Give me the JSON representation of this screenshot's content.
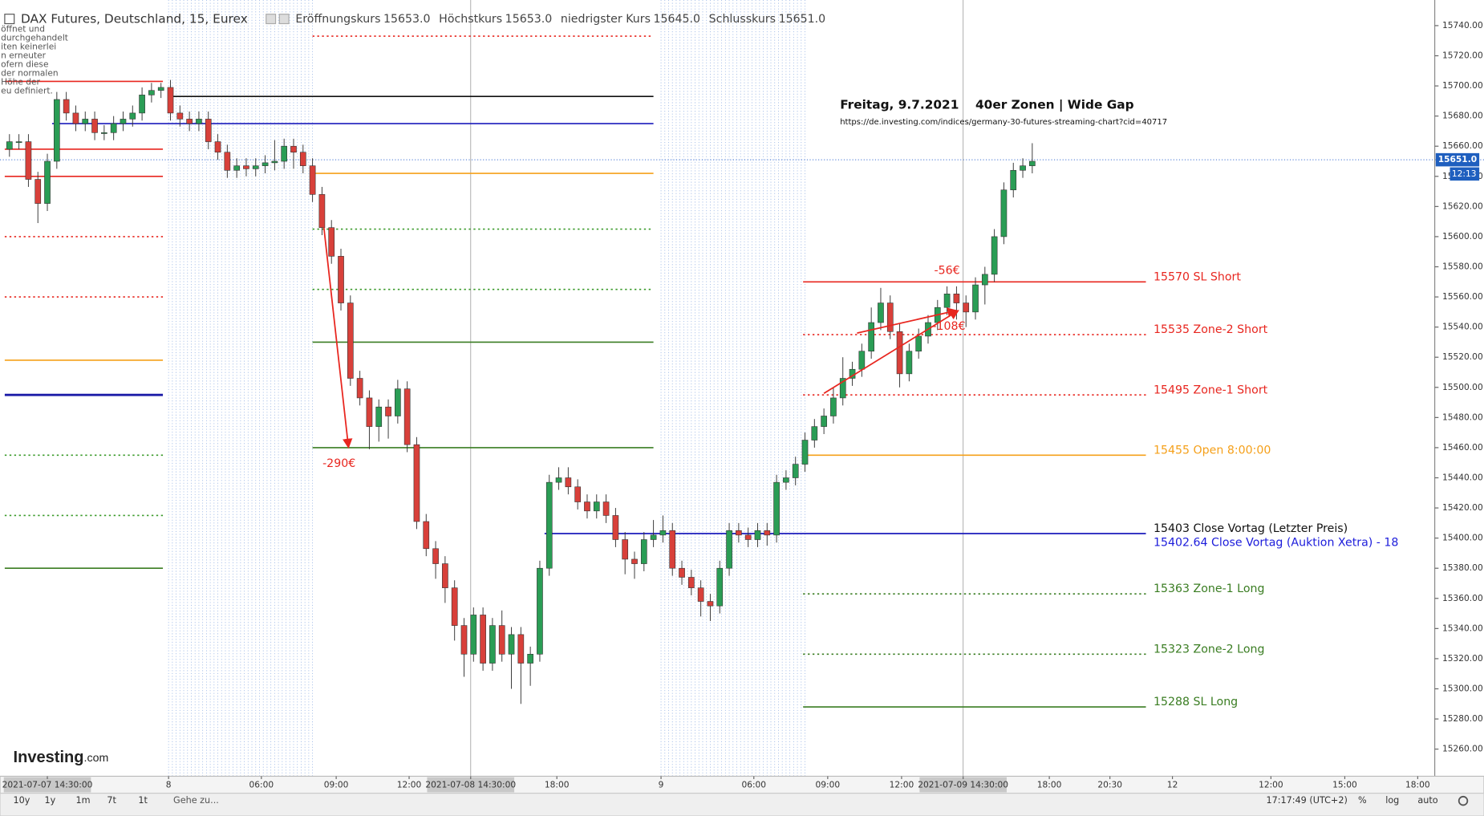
{
  "header": {
    "title": "DAX Futures, Deutschland, 15, Eurex",
    "ohlc": [
      {
        "label": "Eröffnungskurs",
        "value": "15653.0"
      },
      {
        "label": "Höchstkurs",
        "value": "15653.0"
      },
      {
        "label": "niedrigster Kurs",
        "value": "15645.0"
      },
      {
        "label": "Schlusskurs",
        "value": "15651.0"
      }
    ]
  },
  "overlay_text": [
    "öffnet und",
    "durchgehandelt",
    "iten keinerlei",
    "n erneuter",
    "ofern diese",
    "der normalen",
    "Höhe der",
    "eu definiert."
  ],
  "logo": {
    "brand": "Investing",
    "suffix": ".com"
  },
  "toolbar": {
    "periods": [
      "10y",
      "1y",
      "1m",
      "7t",
      "1t"
    ],
    "goto": "Gehe zu...",
    "clock": "17:17:49 (UTC+2)",
    "options": [
      "%",
      "log",
      "auto"
    ]
  },
  "chart_data": {
    "type": "candlestick",
    "title": "Freitag, 9.7.2021",
    "subtitle": "40er Zonen | Wide Gap",
    "source": "https://de.investing.com/indices/germany-30-futures-streaming-chart?cid=40717",
    "up_color": "#2a9d55",
    "down_color": "#d8403a",
    "x": [
      0,
      1,
      2,
      3,
      4,
      5,
      6,
      7,
      8,
      9,
      10,
      11,
      12,
      13,
      14,
      15,
      16,
      17,
      18,
      19,
      20,
      21,
      22,
      23,
      24,
      25,
      26,
      27,
      28,
      29,
      30,
      31,
      32,
      33,
      34,
      35,
      36,
      37,
      38,
      39,
      40,
      41,
      42,
      43,
      44,
      45,
      46,
      47,
      48,
      49,
      50,
      51,
      52,
      53,
      54,
      55,
      56,
      57,
      58,
      59,
      60,
      61,
      62,
      63,
      64,
      65,
      66,
      67,
      68,
      69,
      70,
      71,
      72,
      73,
      74,
      75,
      76,
      77,
      78,
      79,
      80,
      81,
      82,
      83,
      84,
      85,
      86,
      87,
      88,
      89,
      90,
      91,
      92,
      93,
      94,
      95,
      96,
      97,
      98,
      99,
      100,
      101,
      102,
      103,
      104,
      105,
      106,
      107,
      108
    ],
    "open": [
      15658,
      15663,
      15663,
      15638,
      15622,
      15650,
      15691,
      15682,
      15675,
      15678,
      15669,
      15669,
      15675,
      15678,
      15682,
      15694,
      15697,
      15699,
      15682,
      15678,
      15675,
      15678,
      15663,
      15656,
      15644,
      15647,
      15645,
      15647,
      15649,
      15650,
      15660,
      15656,
      15647,
      15628,
      15606,
      15587,
      15556,
      15506,
      15493,
      15474,
      15487,
      15481,
      15499,
      15462,
      15411,
      15393,
      15383,
      15367,
      15342,
      15323,
      15349,
      15317,
      15342,
      15323,
      15336,
      15317,
      15323,
      15380,
      15437,
      15440,
      15434,
      15424,
      15418,
      15424,
      15415,
      15399,
      15386,
      15383,
      15399,
      15402,
      15405,
      15380,
      15374,
      15367,
      15358,
      15355,
      15380,
      15405,
      15402,
      15399,
      15405,
      15402,
      15437,
      15440,
      15449,
      15465,
      15474,
      15481,
      15493,
      15506,
      15512,
      15524,
      15543,
      15556,
      15537,
      15509,
      15524,
      15534,
      15543,
      15553,
      15562,
      15556,
      15550,
      15568,
      15575,
      15600,
      15631,
      15644,
      15647
    ],
    "high": [
      15668,
      15668,
      15668,
      15643,
      15655,
      15696,
      15696,
      15687,
      15683,
      15683,
      15674,
      15680,
      15683,
      15687,
      15699,
      15702,
      15702,
      15704,
      15687,
      15683,
      15683,
      15683,
      15668,
      15661,
      15652,
      15652,
      15652,
      15654,
      15664,
      15665,
      15665,
      15661,
      15652,
      15633,
      15611,
      15592,
      15561,
      15511,
      15498,
      15492,
      15492,
      15505,
      15504,
      15467,
      15416,
      15398,
      15388,
      15372,
      15347,
      15354,
      15354,
      15347,
      15352,
      15341,
      15341,
      15328,
      15385,
      15442,
      15447,
      15447,
      15439,
      15429,
      15429,
      15429,
      15420,
      15404,
      15391,
      15404,
      15412,
      15415,
      15410,
      15385,
      15379,
      15372,
      15363,
      15385,
      15410,
      15410,
      15407,
      15410,
      15410,
      15442,
      15445,
      15454,
      15470,
      15479,
      15486,
      15500,
      15520,
      15517,
      15529,
      15553,
      15566,
      15561,
      15542,
      15529,
      15539,
      15548,
      15558,
      15567,
      15567,
      15561,
      15573,
      15580,
      15605,
      15636,
      15649,
      15652,
      15662
    ],
    "low": [
      15653,
      15658,
      15633,
      15609,
      15617,
      15645,
      15677,
      15670,
      15670,
      15664,
      15664,
      15664,
      15670,
      15673,
      15677,
      15689,
      15692,
      15677,
      15673,
      15670,
      15670,
      15658,
      15651,
      15639,
      15639,
      15640,
      15640,
      15642,
      15644,
      15645,
      15645,
      15642,
      15623,
      15601,
      15582,
      15551,
      15501,
      15488,
      15459,
      15464,
      15466,
      15476,
      15457,
      15406,
      15388,
      15373,
      15357,
      15332,
      15308,
      15318,
      15312,
      15312,
      15318,
      15300,
      15290,
      15302,
      15318,
      15375,
      15432,
      15429,
      15419,
      15413,
      15413,
      15410,
      15394,
      15376,
      15373,
      15378,
      15394,
      15397,
      15375,
      15369,
      15362,
      15348,
      15345,
      15350,
      15375,
      15397,
      15394,
      15394,
      15395,
      15397,
      15432,
      15435,
      15444,
      15460,
      15469,
      15476,
      15488,
      15501,
      15507,
      15519,
      15538,
      15532,
      15500,
      15504,
      15519,
      15529,
      15538,
      15548,
      15545,
      15540,
      15545,
      15555,
      15570,
      15595,
      15626,
      15639,
      15642
    ],
    "close": [
      15663,
      15663,
      15638,
      15622,
      15650,
      15691,
      15682,
      15675,
      15678,
      15669,
      15669,
      15675,
      15678,
      15682,
      15694,
      15697,
      15699,
      15682,
      15678,
      15675,
      15678,
      15663,
      15656,
      15644,
      15647,
      15645,
      15647,
      15649,
      15650,
      15660,
      15656,
      15647,
      15628,
      15606,
      15587,
      15556,
      15506,
      15493,
      15474,
      15487,
      15481,
      15499,
      15462,
      15411,
      15393,
      15383,
      15367,
      15342,
      15323,
      15349,
      15317,
      15342,
      15323,
      15336,
      15317,
      15323,
      15380,
      15437,
      15440,
      15434,
      15424,
      15418,
      15424,
      15415,
      15399,
      15386,
      15383,
      15399,
      15402,
      15405,
      15380,
      15374,
      15367,
      15358,
      15355,
      15380,
      15405,
      15402,
      15399,
      15405,
      15402,
      15437,
      15440,
      15449,
      15465,
      15474,
      15481,
      15493,
      15506,
      15512,
      15524,
      15543,
      15556,
      15537,
      15509,
      15524,
      15534,
      15543,
      15553,
      15562,
      15556,
      15550,
      15568,
      15575,
      15600,
      15631,
      15644,
      15647,
      15650
    ],
    "xlim": [
      -1,
      150.5
    ],
    "ylim": [
      15242,
      15757
    ],
    "yticks": [
      {
        "value": 15260,
        "label": "15260.00"
      },
      {
        "value": 15280,
        "label": "15280.00"
      },
      {
        "value": 15300,
        "label": "15300.00"
      },
      {
        "value": 15320,
        "label": "15320.00"
      },
      {
        "value": 15340,
        "label": "15340.00"
      },
      {
        "value": 15360,
        "label": "15360.00"
      },
      {
        "value": 15380,
        "label": "15380.00"
      },
      {
        "value": 15400,
        "label": "15400.00"
      },
      {
        "value": 15420,
        "label": "15420.00"
      },
      {
        "value": 15440,
        "label": "15440.00"
      },
      {
        "value": 15460,
        "label": "15460.00"
      },
      {
        "value": 15480,
        "label": "15480.00"
      },
      {
        "value": 15500,
        "label": "15500.00"
      },
      {
        "value": 15520,
        "label": "15520.00"
      },
      {
        "value": 15540,
        "label": "15540.00"
      },
      {
        "value": 15560,
        "label": "15560.00"
      },
      {
        "value": 15580,
        "label": "15580.00"
      },
      {
        "value": 15600,
        "label": "15600.00"
      },
      {
        "value": 15620,
        "label": "15620.00"
      },
      {
        "value": 15640,
        "label": "15640.00"
      },
      {
        "value": 15660,
        "label": "15660.00"
      },
      {
        "value": 15680,
        "label": "15680.00"
      },
      {
        "value": 15700,
        "label": "15700.00"
      },
      {
        "value": 15720,
        "label": "15720.00"
      },
      {
        "value": 15740,
        "label": "15740.00"
      }
    ],
    "xticks": [
      {
        "value": 4,
        "label": "2021-07-07 14:30:00"
      },
      {
        "value": 16.8,
        "label": "8"
      },
      {
        "value": 26.6,
        "label": "06:00"
      },
      {
        "value": 34.5,
        "label": "09:00"
      },
      {
        "value": 42.2,
        "label": "12:00"
      },
      {
        "value": 48.7,
        "label": "2021-07-08 14:30:00"
      },
      {
        "value": 57.8,
        "label": "18:00"
      },
      {
        "value": 68.8,
        "label": "9"
      },
      {
        "value": 78.6,
        "label": "06:00"
      },
      {
        "value": 86.4,
        "label": "09:00"
      },
      {
        "value": 94.2,
        "label": "12:00"
      },
      {
        "value": 100.7,
        "label": "2021-07-09 14:30:00"
      },
      {
        "value": 109.8,
        "label": "18:00"
      },
      {
        "value": 116.2,
        "label": "20:30"
      },
      {
        "value": 122.8,
        "label": "12"
      },
      {
        "value": 133.2,
        "label": "12:00"
      },
      {
        "value": 141,
        "label": "15:00"
      },
      {
        "value": 148.7,
        "label": "18:00"
      }
    ],
    "last_price": {
      "value": 15651,
      "label": "15651.0",
      "time": "12:13"
    },
    "levels": [
      {
        "value": 15703,
        "x": [
          -0.5,
          16.2
        ],
        "color": "#e8261f",
        "style": "solid"
      },
      {
        "value": 15658,
        "x": [
          -0.5,
          16.2
        ],
        "color": "#e8261f",
        "style": "solid"
      },
      {
        "value": 15640,
        "x": [
          -0.5,
          16.2
        ],
        "color": "#e8261f",
        "style": "solid"
      },
      {
        "value": 15600,
        "x": [
          -0.5,
          16.2
        ],
        "color": "#e8261f",
        "style": "dotted"
      },
      {
        "value": 15560,
        "x": [
          -0.5,
          16.2
        ],
        "color": "#e8261f",
        "style": "dotted"
      },
      {
        "value": 15518,
        "x": [
          -0.5,
          16.2
        ],
        "color": "#f5a01a",
        "style": "solid"
      },
      {
        "value": 15495,
        "x": [
          -0.5,
          16.2
        ],
        "color": "#1c1ca8",
        "style": "thick"
      },
      {
        "value": 15455,
        "x": [
          -0.5,
          16.2
        ],
        "color": "#3a9a2a",
        "style": "dotted"
      },
      {
        "value": 15415,
        "x": [
          -0.5,
          16.2
        ],
        "color": "#3a9a2a",
        "style": "dotted"
      },
      {
        "value": 15380,
        "x": [
          -0.5,
          16.2
        ],
        "color": "#3a7d22",
        "style": "solid"
      },
      {
        "value": 15733,
        "x": [
          32,
          68
        ],
        "color": "#e8261f",
        "style": "dotted"
      },
      {
        "value": 15693,
        "x": [
          16.8,
          68
        ],
        "color": "#111111",
        "style": "solid"
      },
      {
        "value": 15675,
        "x": [
          4.5,
          68
        ],
        "color": "#1c1cbc",
        "style": "solid"
      },
      {
        "value": 15642,
        "x": [
          32,
          68
        ],
        "color": "#f5a01a",
        "style": "solid"
      },
      {
        "value": 15605,
        "x": [
          32,
          68
        ],
        "color": "#3a9a2a",
        "style": "dotted"
      },
      {
        "value": 15565,
        "x": [
          32,
          68
        ],
        "color": "#3a9a2a",
        "style": "dotted"
      },
      {
        "value": 15530,
        "x": [
          32,
          68
        ],
        "color": "#3a7d22",
        "style": "solid"
      },
      {
        "value": 15460,
        "x": [
          32,
          68
        ],
        "color": "#3a7d22",
        "style": "solid"
      },
      {
        "value": 15570,
        "x": [
          83.8,
          120
        ],
        "color": "#e8261f",
        "style": "solid",
        "label": "15570 SL Short"
      },
      {
        "value": 15535,
        "x": [
          83.8,
          120
        ],
        "color": "#e8261f",
        "style": "dotted",
        "label": "15535 Zone-2 Short"
      },
      {
        "value": 15495,
        "x": [
          83.8,
          120
        ],
        "color": "#e8261f",
        "style": "dotted",
        "label": "15495 Zone-1 Short"
      },
      {
        "value": 15455,
        "x": [
          83.8,
          120
        ],
        "color": "#f5a01a",
        "style": "solid",
        "label": "15455 Open 8:00:00"
      },
      {
        "value": 15403,
        "x": [
          56.5,
          120
        ],
        "color": "#1c1cbc",
        "style": "solid",
        "label": "15403 Close Vortag (Letzter Preis)",
        "label_color": "#111111"
      },
      {
        "value": 15402.64,
        "x": [
          56.5,
          120
        ],
        "color": "#1c1cdb",
        "style": "none",
        "label": "15402.64 Close Vortag (Auktion Xetra) - 18"
      },
      {
        "value": 15363,
        "x": [
          83.8,
          120
        ],
        "color": "#3a7d22",
        "style": "dotted",
        "label": "15363 Zone-1 Long"
      },
      {
        "value": 15323,
        "x": [
          83.8,
          120
        ],
        "color": "#3a7d22",
        "style": "dotted",
        "label": "15323 Zone-2 Long"
      },
      {
        "value": 15288,
        "x": [
          83.8,
          120
        ],
        "color": "#3a7d22",
        "style": "solid",
        "label": "15288 SL Long"
      }
    ],
    "annotations": [
      {
        "text": "-290€",
        "from": [
          33.2,
          15606
        ],
        "to": [
          35.8,
          15460
        ],
        "color": "#e8261f",
        "label_position": "below"
      },
      {
        "text": "-108€",
        "from": [
          86,
          15496
        ],
        "to": [
          100.2,
          15551
        ],
        "color": "#e8261f",
        "label_position": "below"
      },
      {
        "text": "-56€",
        "from": [
          89.5,
          15536
        ],
        "to": [
          100,
          15551
        ],
        "color": "#e8261f",
        "label_position": "above"
      }
    ]
  }
}
